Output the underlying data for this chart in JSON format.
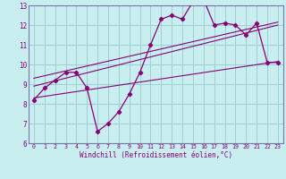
{
  "bg_color": "#c8eef0",
  "grid_color": "#9ecfcf",
  "line_color": "#880077",
  "spine_color": "#7777aa",
  "xlabel": "Windchill (Refroidissement éolien,°C)",
  "xlim": [
    -0.5,
    23.5
  ],
  "ylim": [
    6,
    13
  ],
  "yticks": [
    6,
    7,
    8,
    9,
    10,
    11,
    12,
    13
  ],
  "xticks": [
    0,
    1,
    2,
    3,
    4,
    5,
    6,
    7,
    8,
    9,
    10,
    11,
    12,
    13,
    14,
    15,
    16,
    17,
    18,
    19,
    20,
    21,
    22,
    23
  ],
  "series1_x": [
    0,
    1,
    2,
    3,
    4,
    5,
    6,
    7,
    8,
    9,
    10,
    11,
    12,
    13,
    14,
    15,
    16,
    17,
    18,
    19,
    20,
    21,
    22,
    23
  ],
  "series1_y": [
    8.2,
    8.8,
    9.2,
    9.6,
    9.6,
    8.8,
    6.6,
    7.0,
    7.6,
    8.5,
    9.6,
    11.0,
    12.3,
    12.5,
    12.3,
    13.2,
    13.3,
    12.0,
    12.1,
    12.0,
    11.5,
    12.1,
    10.1,
    10.1
  ],
  "series2_x": [
    0,
    23
  ],
  "series2_y": [
    8.9,
    12.0
  ],
  "series3_x": [
    0,
    23
  ],
  "series3_y": [
    9.3,
    12.15
  ],
  "series4_x": [
    0,
    23
  ],
  "series4_y": [
    8.3,
    10.15
  ]
}
